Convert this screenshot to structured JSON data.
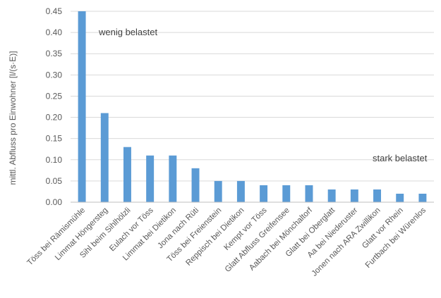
{
  "chart_data": {
    "type": "bar",
    "title": "",
    "xlabel": "",
    "ylabel": "mittl. Abfluss pro Einwohner  [l/(s·E)]",
    "ylim": [
      0,
      0.45
    ],
    "yticks": [
      "0.00",
      "0.05",
      "0.10",
      "0.15",
      "0.20",
      "0.25",
      "0.30",
      "0.35",
      "0.40",
      "0.45"
    ],
    "grid": true,
    "categories": [
      "Töss bei Rämismühle",
      "Limmat Höngersteg",
      "Sihl beim Sihlhölzli",
      "Eulach vor Töss",
      "Limmat bei Dietikon",
      "Jona nach Rüti",
      "Töss bei Freienstein",
      "Reppisch bei Dietikon",
      "Kempt vor Töss",
      "Glatt Abfluss Greifensee",
      "Aabach bei Mönchaltorf",
      "Glatt bei Oberglatt",
      "Aa bei Niederuster",
      "Jonen nach ARA Zwillikon",
      "Glatt vor Rhein",
      "Furtbach bei Würenlos"
    ],
    "values": [
      0.45,
      0.21,
      0.13,
      0.11,
      0.11,
      0.08,
      0.05,
      0.05,
      0.04,
      0.04,
      0.04,
      0.03,
      0.03,
      0.03,
      0.02,
      0.02
    ],
    "annotations": [
      "wenig belastet",
      "stark belastet"
    ],
    "bar_color": "#5b9bd5"
  }
}
